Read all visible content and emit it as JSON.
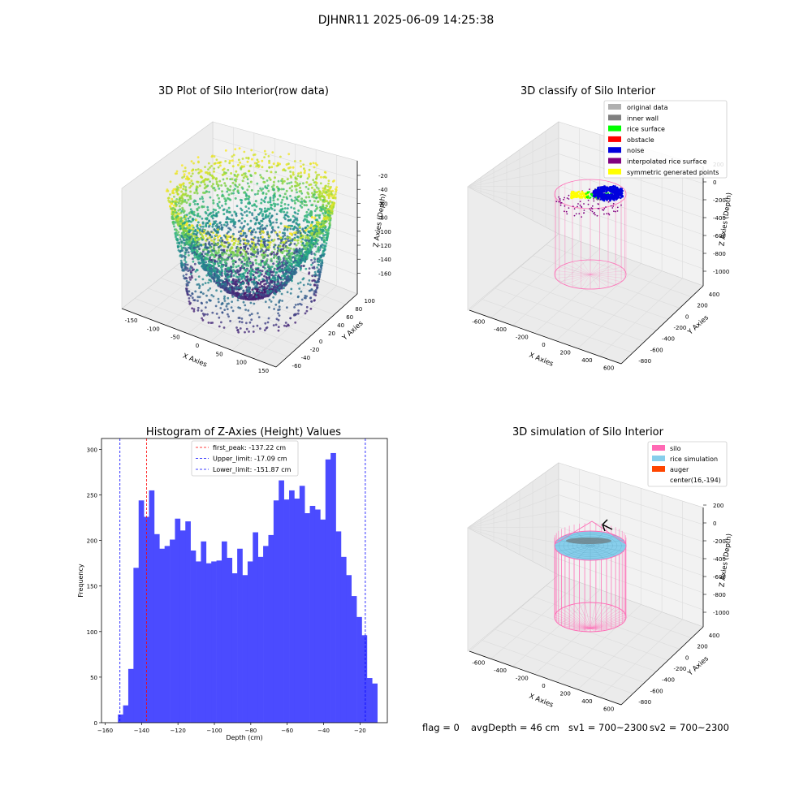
{
  "suptitle": "DJHNR11 2025-06-09 14:25:38",
  "footer": {
    "flag": "flag = 0",
    "avg_depth": "avgDepth = 46 cm",
    "sv1": "sv1 = 700~2300",
    "sv2": "sv2 = 700~2300"
  },
  "colors": {
    "hist_bar": "#4b4bff",
    "first_peak_line": "#ff0000",
    "limit_lines": "#0000ff",
    "silo_pink": "#ff69b4",
    "rice_sim": "#87ceeb",
    "auger": "#ff4500"
  },
  "chart_data": [
    {
      "type": "scatter",
      "projection": "3d",
      "title": "3D Plot of Silo Interior(row data)",
      "xlabel": "X Axies",
      "ylabel": "Y Axies",
      "zlabel": "Z Axies (Depth)",
      "x_ticks": [
        "-150",
        "-100",
        "-50",
        "0",
        "50",
        "100",
        "150"
      ],
      "y_ticks": [
        "-60",
        "-40",
        "-20",
        "0",
        "20",
        "40",
        "60",
        "80",
        "100"
      ],
      "z_ticks": [
        "-20",
        "-40",
        "-60",
        "-80",
        "-100",
        "-120",
        "-140",
        "-160"
      ],
      "xlim": [
        -170,
        160
      ],
      "ylim": [
        -70,
        105
      ],
      "zlim": [
        -170,
        -10
      ],
      "colormap": "viridis"
    },
    {
      "type": "scatter",
      "projection": "3d",
      "title": "3D classify of Silo Interior",
      "xlabel": "X Axies",
      "ylabel": "Y Axies",
      "zlabel": "Z Axies (Depth)",
      "x_ticks": [
        "-600",
        "-400",
        "-200",
        "0",
        "200",
        "400",
        "600"
      ],
      "y_ticks": [
        "-800",
        "-600",
        "-400",
        "-200",
        "0",
        "200",
        "400"
      ],
      "z_ticks": [
        "200",
        "0",
        "-200",
        "-400",
        "-600",
        "-800",
        "-1000"
      ],
      "legend": [
        {
          "label": "original data",
          "color": "#b0b0b0"
        },
        {
          "label": "inner wall",
          "color": "#808080"
        },
        {
          "label": "rice surface",
          "color": "#00ff00"
        },
        {
          "label": "obstacle",
          "color": "#ff0000"
        },
        {
          "label": "noise",
          "color": "#0000dd"
        },
        {
          "label": "interpolated rice surface",
          "color": "#800080"
        },
        {
          "label": "symmetric generated points",
          "color": "#ffff00"
        }
      ],
      "legend_loc": "upper right"
    },
    {
      "type": "bar",
      "title": "Histogram of Z-Axies (Height) Values",
      "xlabel": "Depth (cm)",
      "ylabel": "Frequency",
      "xlim": [
        -162,
        -5
      ],
      "ylim": [
        0,
        312
      ],
      "x_ticks": [
        -160,
        -140,
        -120,
        -100,
        -80,
        -60,
        -40,
        -20
      ],
      "y_ticks": [
        0,
        50,
        100,
        150,
        200,
        250,
        300
      ],
      "bin_start": -153.0,
      "bin_width": 2.85,
      "values": [
        9,
        19,
        59,
        170,
        244,
        226,
        255,
        207,
        191,
        194,
        201,
        224,
        211,
        221,
        189,
        177,
        199,
        175,
        177,
        178,
        199,
        181,
        164,
        191,
        162,
        177,
        209,
        182,
        194,
        206,
        244,
        266,
        245,
        255,
        246,
        260,
        230,
        238,
        234,
        223,
        289,
        296,
        210,
        182,
        162,
        139,
        116,
        96,
        49,
        43
      ],
      "vlines": [
        {
          "label": "first_peak: -137.22 cm",
          "x": -137.22,
          "color": "#ff0000"
        },
        {
          "label": "Upper_limit: -17.09 cm",
          "x": -17.09,
          "color": "#0000ff"
        },
        {
          "label": "Lower_limit: -151.87 cm",
          "x": -151.87,
          "color": "#0000ff"
        }
      ],
      "legend_loc": "upper center"
    },
    {
      "type": "scatter",
      "projection": "3d",
      "title": "3D simulation of Silo Interior",
      "xlabel": "X Axies",
      "ylabel": "Y Axies",
      "zlabel": "Z Axies (Depth)",
      "x_ticks": [
        "-600",
        "-400",
        "-200",
        "0",
        "200",
        "400",
        "600"
      ],
      "y_ticks": [
        "-800",
        "-600",
        "-400",
        "-200",
        "0",
        "200",
        "400"
      ],
      "z_ticks": [
        "200",
        "0",
        "-200",
        "-400",
        "-600",
        "-800",
        "-1000"
      ],
      "legend": [
        {
          "label": "silo",
          "color": "#ff69b4"
        },
        {
          "label": "rice simulation",
          "color": "#87ceeb"
        },
        {
          "label": "auger",
          "color": "#ff4500"
        },
        {
          "label": "center(16,-194)",
          "color": ""
        }
      ],
      "legend_loc": "upper right"
    }
  ]
}
